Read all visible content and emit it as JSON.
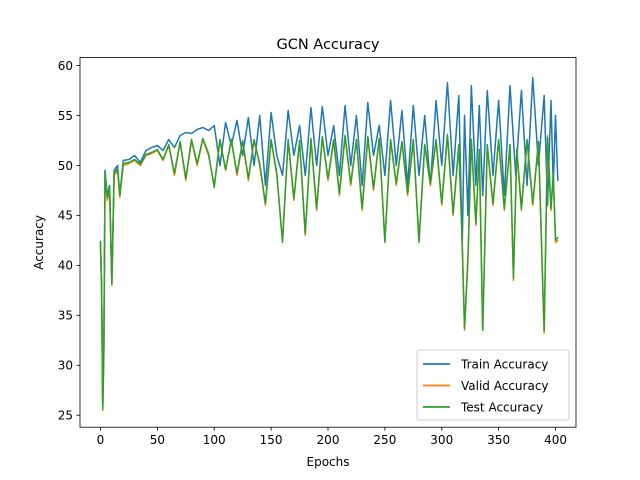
{
  "chart_data": {
    "type": "line",
    "title": "GCN Accuracy",
    "xlabel": "Epochs",
    "ylabel": "Accuracy",
    "xlim": [
      -18,
      418
    ],
    "ylim": [
      23.8,
      60.8
    ],
    "xticks": [
      0,
      50,
      100,
      150,
      200,
      250,
      300,
      350,
      400
    ],
    "yticks": [
      25,
      30,
      35,
      40,
      45,
      50,
      55,
      60
    ],
    "legend_position": "lower-right",
    "colors": {
      "train": "#1f77b4",
      "valid": "#ff7f0e",
      "test": "#2ca02c"
    },
    "series": [
      {
        "key": "train",
        "name": "Train Accuracy",
        "points": [
          [
            0,
            42.3
          ],
          [
            1,
            38.0
          ],
          [
            2,
            25.6
          ],
          [
            3,
            32.0
          ],
          [
            4,
            49.5
          ],
          [
            6,
            47.0
          ],
          [
            8,
            48.0
          ],
          [
            10,
            38.3
          ],
          [
            12,
            49.5
          ],
          [
            15,
            50.0
          ],
          [
            17,
            47.0
          ],
          [
            20,
            50.5
          ],
          [
            25,
            50.6
          ],
          [
            30,
            51.0
          ],
          [
            35,
            50.3
          ],
          [
            40,
            51.5
          ],
          [
            45,
            51.8
          ],
          [
            50,
            52.0
          ],
          [
            55,
            51.5
          ],
          [
            60,
            52.6
          ],
          [
            65,
            51.8
          ],
          [
            70,
            53.0
          ],
          [
            75,
            53.3
          ],
          [
            80,
            53.2
          ],
          [
            85,
            53.6
          ],
          [
            90,
            53.8
          ],
          [
            95,
            53.5
          ],
          [
            100,
            54.0
          ],
          [
            105,
            50.0
          ],
          [
            110,
            54.3
          ],
          [
            115,
            52.0
          ],
          [
            120,
            54.5
          ],
          [
            125,
            51.0
          ],
          [
            130,
            54.8
          ],
          [
            135,
            50.0
          ],
          [
            140,
            55.0
          ],
          [
            145,
            48.0
          ],
          [
            150,
            55.3
          ],
          [
            155,
            51.0
          ],
          [
            160,
            49.0
          ],
          [
            165,
            55.5
          ],
          [
            170,
            51.0
          ],
          [
            175,
            54.0
          ],
          [
            180,
            49.0
          ],
          [
            185,
            55.8
          ],
          [
            190,
            50.0
          ],
          [
            195,
            55.9
          ],
          [
            200,
            51.0
          ],
          [
            205,
            54.0
          ],
          [
            210,
            49.0
          ],
          [
            215,
            56.0
          ],
          [
            220,
            50.0
          ],
          [
            225,
            55.0
          ],
          [
            230,
            48.0
          ],
          [
            235,
            56.3
          ],
          [
            240,
            51.0
          ],
          [
            245,
            54.0
          ],
          [
            250,
            49.0
          ],
          [
            255,
            56.5
          ],
          [
            260,
            50.0
          ],
          [
            265,
            55.5
          ],
          [
            270,
            48.0
          ],
          [
            275,
            56.0
          ],
          [
            280,
            49.0
          ],
          [
            285,
            55.0
          ],
          [
            290,
            48.0
          ],
          [
            295,
            56.5
          ],
          [
            300,
            50.0
          ],
          [
            305,
            58.3
          ],
          [
            310,
            49.0
          ],
          [
            315,
            57.0
          ],
          [
            318,
            42.0
          ],
          [
            320,
            55.0
          ],
          [
            323,
            45.0
          ],
          [
            326,
            58.0
          ],
          [
            330,
            48.0
          ],
          [
            333,
            56.0
          ],
          [
            336,
            47.0
          ],
          [
            340,
            57.5
          ],
          [
            345,
            49.0
          ],
          [
            350,
            56.5
          ],
          [
            355,
            47.0
          ],
          [
            360,
            58.0
          ],
          [
            365,
            49.0
          ],
          [
            370,
            57.5
          ],
          [
            375,
            48.0
          ],
          [
            380,
            58.8
          ],
          [
            385,
            50.0
          ],
          [
            390,
            57.0
          ],
          [
            393,
            46.0
          ],
          [
            396,
            56.5
          ],
          [
            398,
            48.0
          ],
          [
            400,
            55.0
          ],
          [
            402,
            48.5
          ]
        ]
      },
      {
        "key": "valid",
        "name": "Valid Accuracy",
        "points": [
          [
            0,
            42.0
          ],
          [
            1,
            37.5
          ],
          [
            2,
            25.5
          ],
          [
            3,
            31.5
          ],
          [
            4,
            49.0
          ],
          [
            6,
            46.5
          ],
          [
            8,
            47.5
          ],
          [
            10,
            38.0
          ],
          [
            12,
            49.0
          ],
          [
            15,
            49.5
          ],
          [
            17,
            46.8
          ],
          [
            20,
            50.0
          ],
          [
            25,
            50.2
          ],
          [
            30,
            50.5
          ],
          [
            35,
            50.0
          ],
          [
            40,
            51.0
          ],
          [
            45,
            51.2
          ],
          [
            50,
            51.5
          ],
          [
            55,
            50.5
          ],
          [
            60,
            52.0
          ],
          [
            65,
            49.0
          ],
          [
            70,
            52.3
          ],
          [
            75,
            48.5
          ],
          [
            80,
            52.5
          ],
          [
            85,
            50.0
          ],
          [
            90,
            52.6
          ],
          [
            95,
            51.0
          ],
          [
            100,
            48.0
          ],
          [
            105,
            52.5
          ],
          [
            110,
            49.5
          ],
          [
            115,
            52.5
          ],
          [
            120,
            49.0
          ],
          [
            125,
            52.4
          ],
          [
            130,
            48.5
          ],
          [
            135,
            52.5
          ],
          [
            140,
            50.0
          ],
          [
            145,
            46.0
          ],
          [
            150,
            52.5
          ],
          [
            155,
            49.0
          ],
          [
            160,
            42.5
          ],
          [
            165,
            52.5
          ],
          [
            170,
            46.5
          ],
          [
            175,
            52.4
          ],
          [
            180,
            43.0
          ],
          [
            185,
            52.6
          ],
          [
            190,
            45.5
          ],
          [
            195,
            52.8
          ],
          [
            200,
            48.5
          ],
          [
            205,
            52.5
          ],
          [
            210,
            47.0
          ],
          [
            215,
            52.9
          ],
          [
            220,
            48.0
          ],
          [
            225,
            52.5
          ],
          [
            230,
            45.5
          ],
          [
            235,
            52.8
          ],
          [
            240,
            47.5
          ],
          [
            245,
            52.6
          ],
          [
            250,
            42.5
          ],
          [
            255,
            52.5
          ],
          [
            260,
            48.0
          ],
          [
            265,
            52.3
          ],
          [
            270,
            47.0
          ],
          [
            275,
            52.5
          ],
          [
            280,
            42.5
          ],
          [
            285,
            52.0
          ],
          [
            290,
            48.0
          ],
          [
            295,
            52.5
          ],
          [
            300,
            46.0
          ],
          [
            305,
            53.0
          ],
          [
            310,
            45.0
          ],
          [
            315,
            52.0
          ],
          [
            318,
            42.0
          ],
          [
            320,
            33.5
          ],
          [
            323,
            40.5
          ],
          [
            326,
            52.5
          ],
          [
            330,
            44.0
          ],
          [
            333,
            51.5
          ],
          [
            336,
            33.5
          ],
          [
            340,
            52.0
          ],
          [
            345,
            46.0
          ],
          [
            350,
            52.5
          ],
          [
            355,
            45.5
          ],
          [
            360,
            52.0
          ],
          [
            363,
            38.5
          ],
          [
            366,
            51.5
          ],
          [
            370,
            45.5
          ],
          [
            375,
            52.5
          ],
          [
            380,
            46.0
          ],
          [
            385,
            52.3
          ],
          [
            390,
            33.2
          ],
          [
            393,
            53.0
          ],
          [
            396,
            45.5
          ],
          [
            398,
            49.0
          ],
          [
            400,
            42.3
          ],
          [
            402,
            42.5
          ]
        ]
      },
      {
        "key": "test",
        "name": "Test Accuracy",
        "points": [
          [
            0,
            42.4
          ],
          [
            1,
            37.8
          ],
          [
            2,
            25.6
          ],
          [
            3,
            31.8
          ],
          [
            4,
            49.4
          ],
          [
            6,
            46.8
          ],
          [
            8,
            47.8
          ],
          [
            10,
            38.1
          ],
          [
            12,
            49.2
          ],
          [
            15,
            49.7
          ],
          [
            17,
            47.0
          ],
          [
            20,
            50.2
          ],
          [
            25,
            50.3
          ],
          [
            30,
            50.6
          ],
          [
            35,
            50.1
          ],
          [
            40,
            51.1
          ],
          [
            45,
            51.3
          ],
          [
            50,
            51.6
          ],
          [
            55,
            50.6
          ],
          [
            60,
            52.1
          ],
          [
            65,
            49.2
          ],
          [
            70,
            52.4
          ],
          [
            75,
            48.7
          ],
          [
            80,
            52.6
          ],
          [
            85,
            50.2
          ],
          [
            90,
            52.7
          ],
          [
            95,
            51.2
          ],
          [
            100,
            47.8
          ],
          [
            105,
            52.6
          ],
          [
            110,
            49.6
          ],
          [
            115,
            52.6
          ],
          [
            120,
            49.2
          ],
          [
            125,
            52.5
          ],
          [
            130,
            48.7
          ],
          [
            135,
            52.6
          ],
          [
            140,
            50.2
          ],
          [
            145,
            46.2
          ],
          [
            150,
            52.6
          ],
          [
            155,
            49.2
          ],
          [
            160,
            42.3
          ],
          [
            165,
            52.6
          ],
          [
            170,
            46.7
          ],
          [
            175,
            52.5
          ],
          [
            180,
            43.2
          ],
          [
            185,
            52.7
          ],
          [
            190,
            45.7
          ],
          [
            195,
            52.9
          ],
          [
            200,
            48.7
          ],
          [
            205,
            52.6
          ],
          [
            210,
            47.2
          ],
          [
            215,
            53.0
          ],
          [
            220,
            48.2
          ],
          [
            225,
            52.6
          ],
          [
            230,
            45.7
          ],
          [
            235,
            52.9
          ],
          [
            240,
            47.7
          ],
          [
            245,
            52.7
          ],
          [
            250,
            42.3
          ],
          [
            255,
            52.6
          ],
          [
            260,
            48.2
          ],
          [
            265,
            52.4
          ],
          [
            270,
            47.2
          ],
          [
            275,
            52.6
          ],
          [
            280,
            42.3
          ],
          [
            285,
            52.1
          ],
          [
            290,
            48.2
          ],
          [
            295,
            52.6
          ],
          [
            300,
            46.2
          ],
          [
            305,
            53.1
          ],
          [
            310,
            45.2
          ],
          [
            315,
            52.1
          ],
          [
            318,
            42.2
          ],
          [
            320,
            33.7
          ],
          [
            323,
            40.7
          ],
          [
            326,
            52.6
          ],
          [
            330,
            44.2
          ],
          [
            333,
            51.6
          ],
          [
            336,
            33.5
          ],
          [
            340,
            52.1
          ],
          [
            345,
            46.2
          ],
          [
            350,
            52.6
          ],
          [
            355,
            45.7
          ],
          [
            360,
            52.1
          ],
          [
            363,
            38.7
          ],
          [
            366,
            51.6
          ],
          [
            370,
            45.7
          ],
          [
            375,
            52.6
          ],
          [
            380,
            46.2
          ],
          [
            385,
            52.4
          ],
          [
            390,
            33.5
          ],
          [
            393,
            52.8
          ],
          [
            396,
            45.7
          ],
          [
            398,
            49.2
          ],
          [
            400,
            42.5
          ],
          [
            402,
            42.8
          ]
        ]
      }
    ]
  }
}
